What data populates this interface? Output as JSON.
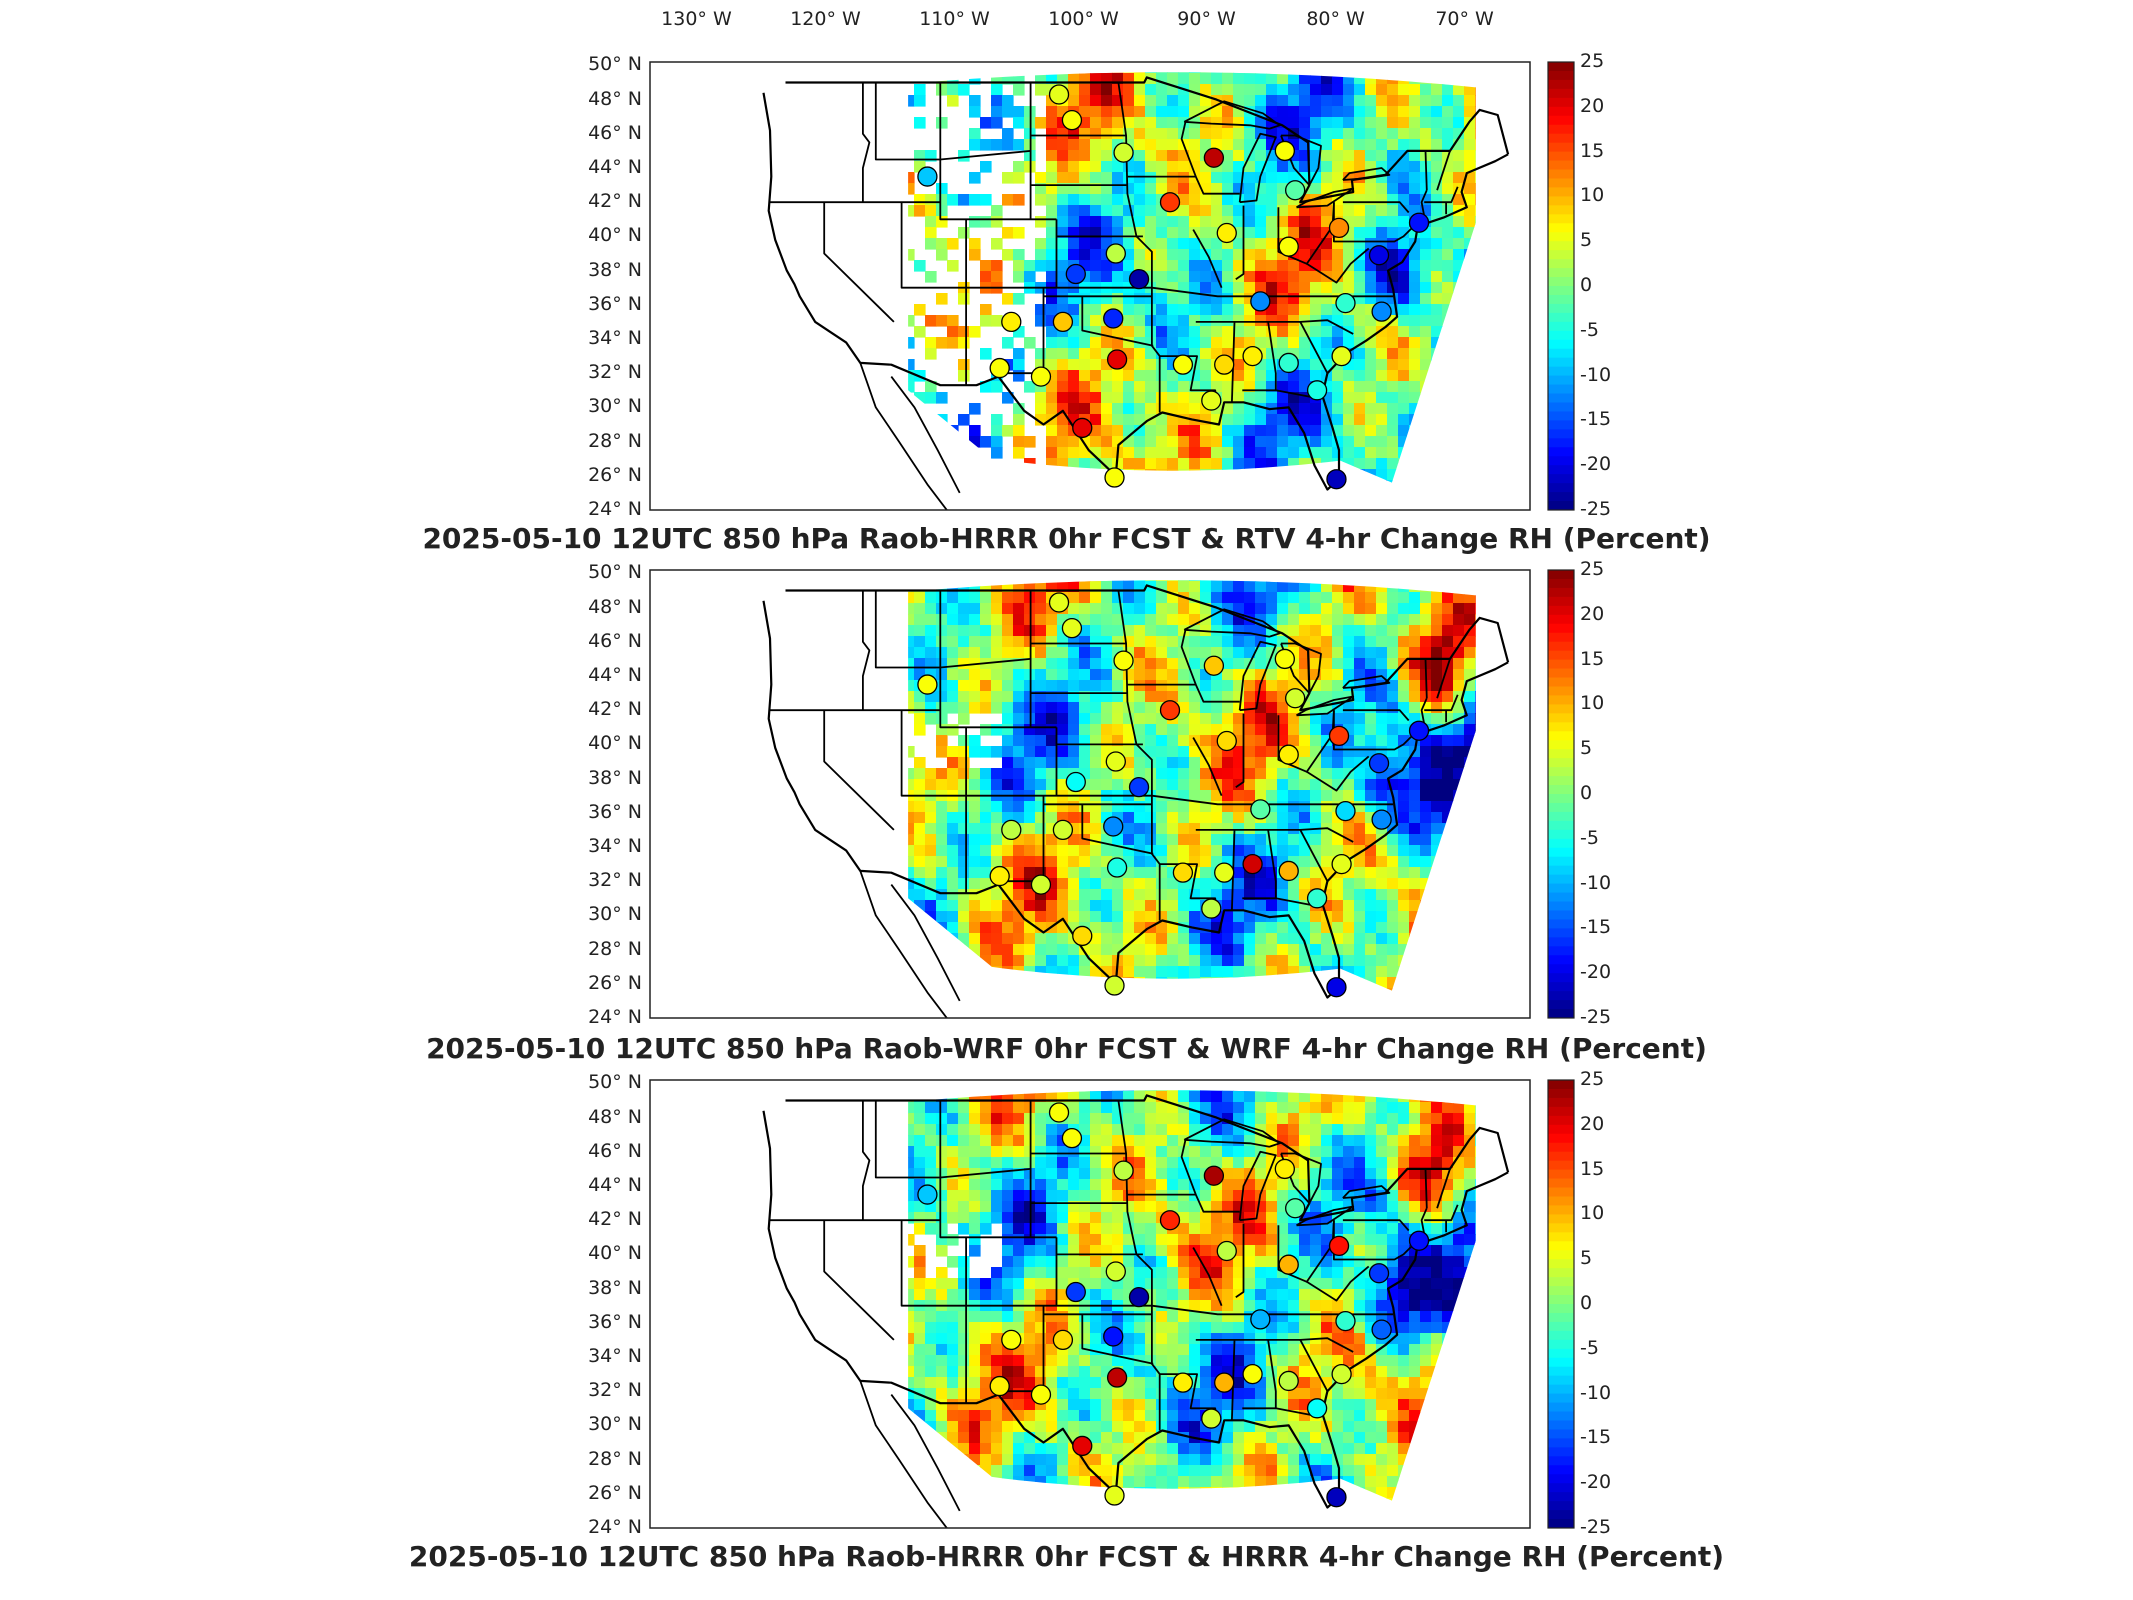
{
  "longitude_labels": [
    "130° W",
    "120° W",
    "110° W",
    "100° W",
    "90° W",
    "80° W",
    "70° W"
  ],
  "latitude_labels": [
    "50° N",
    "48° N",
    "46° N",
    "44° N",
    "42° N",
    "40° N",
    "38° N",
    "36° N",
    "34° N",
    "32° N",
    "30° N",
    "28° N",
    "26° N",
    "24° N"
  ],
  "colorbar": {
    "ticks": [
      "25",
      "20",
      "15",
      "10",
      "5",
      "0",
      "-5",
      "-10",
      "-15",
      "-20",
      "-25"
    ],
    "range": [
      -25,
      25
    ],
    "colormap": "jet",
    "colors": [
      "#00008f",
      "#0000ff",
      "#0080ff",
      "#00ffff",
      "#80ff80",
      "#ffff00",
      "#ff8000",
      "#ff0000",
      "#800000"
    ]
  },
  "panels": [
    {
      "title": "2025-05-10 12UTC 850 hPa Raob-HRRR 0hr FCST & RTV 4-hr Change RH (Percent)",
      "field": "RTV 4-hr change RH",
      "raob_points": "Raob-HRRR 0hr FCST difference"
    },
    {
      "title": "2025-05-10 12UTC 850 hPa Raob-WRF 0hr FCST & WRF 4-hr Change RH (Percent)",
      "field": "WRF 4-hr change RH",
      "raob_points": "Raob-WRF 0hr FCST difference"
    },
    {
      "title": "2025-05-10 12UTC 850 hPa Raob-HRRR 0hr FCST & HRRR 4-hr Change RH (Percent)",
      "field": "HRRR 4-hr change RH",
      "raob_points": "Raob-HRRR 0hr FCST difference"
    }
  ]
}
